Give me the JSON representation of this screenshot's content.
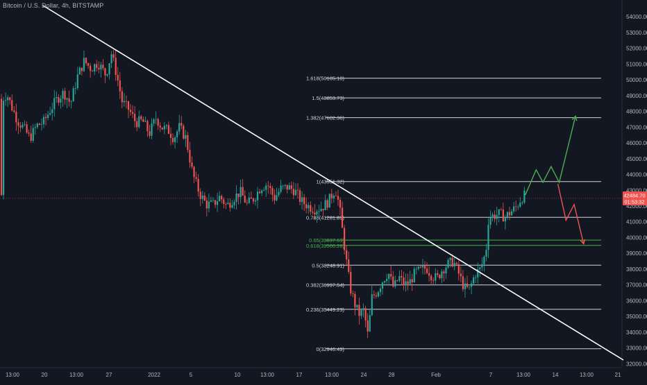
{
  "header": {
    "title": "Bitcoin / U.S. Dollar, 4h, BITSTAMP"
  },
  "colors": {
    "background": "#131722",
    "bull": "#26a69a",
    "bear": "#ef5350",
    "fib_line": "#d1d4dc",
    "fib_green": "#4caf50",
    "trendline": "#ffffff",
    "projection_up": "#4caf50",
    "projection_down": "#ef5350",
    "price_line": "#ef5350",
    "axis_text": "#b2b5be"
  },
  "price_tag": {
    "price": "42484.70",
    "countdown": "01:53:32"
  },
  "chart_data": {
    "type": "candlestick",
    "x_ticks": [
      "13:00",
      "20",
      "13:00",
      "27",
      "2022",
      "5",
      "10",
      "13:00",
      "17",
      "13:00",
      "24",
      "28",
      "Feb",
      "7",
      "13:00",
      "14",
      "13:00",
      "21"
    ],
    "y_ticks": [
      32000,
      33000,
      34000,
      35000,
      36000,
      37000,
      38000,
      39000,
      40000,
      41000,
      42000,
      43000,
      44000,
      45000,
      46000,
      47000,
      48000,
      49000,
      50000,
      51000,
      52000,
      53000,
      54000
    ],
    "ylim": [
      31750,
      54800
    ],
    "current_price": 42484.7,
    "fib_levels": [
      {
        "ratio": "0",
        "price": 32946.49,
        "label": "0(32946.49)",
        "color": "white"
      },
      {
        "ratio": "0.236",
        "price": 35449.23,
        "label": "0.236(35449.23)",
        "color": "white"
      },
      {
        "ratio": "0.382",
        "price": 36997.54,
        "label": "0.382(36997.54)",
        "color": "white"
      },
      {
        "ratio": "0.5",
        "price": 38248.91,
        "label": "0.5(38248.91)",
        "color": "white"
      },
      {
        "ratio": "0.618",
        "price": 39500.28,
        "label": "0.618(39500.28)",
        "color": "green"
      },
      {
        "ratio": "0.65",
        "price": 39837.63,
        "label": "0.65(39837.63)",
        "color": "green"
      },
      {
        "ratio": "0.786",
        "price": 41281.89,
        "label": "0.786(41281.89)",
        "color": "white"
      },
      {
        "ratio": "1",
        "price": 43551.32,
        "label": "1(43551.32)",
        "color": "white"
      },
      {
        "ratio": "1.382",
        "price": 47602.36,
        "label": "1.382(47602.36)",
        "color": "white"
      },
      {
        "ratio": "1.5",
        "price": 48853.73,
        "label": "1.5(48853.73)",
        "color": "white"
      },
      {
        "ratio": "1.618",
        "price": 50105.1,
        "label": "1.618(50105.10)",
        "color": "white"
      }
    ],
    "price_path": [
      [
        0,
        48800
      ],
      [
        0.3,
        49100
      ],
      [
        0.7,
        48200
      ],
      [
        1.1,
        47400
      ],
      [
        1.5,
        47000
      ],
      [
        2.0,
        46300
      ],
      [
        2.5,
        47100
      ],
      [
        3.0,
        47300
      ],
      [
        3.5,
        48100
      ],
      [
        4.0,
        48800
      ],
      [
        4.5,
        49200
      ],
      [
        5.0,
        48500
      ],
      [
        5.5,
        50200
      ],
      [
        6.0,
        51200
      ],
      [
        6.5,
        50700
      ],
      [
        7.0,
        51100
      ],
      [
        7.6,
        50300
      ],
      [
        8.0,
        51700
      ],
      [
        8.4,
        50300
      ],
      [
        8.8,
        48600
      ],
      [
        9.3,
        48100
      ],
      [
        9.8,
        47300
      ],
      [
        10.3,
        47400
      ],
      [
        10.8,
        46600
      ],
      [
        11.3,
        47600
      ],
      [
        11.7,
        47000
      ],
      [
        12.2,
        46800
      ],
      [
        12.6,
        46300
      ],
      [
        13.0,
        47000
      ],
      [
        13.5,
        46300
      ],
      [
        14.0,
        44000
      ],
      [
        14.5,
        42800
      ],
      [
        15.0,
        42100
      ],
      [
        15.5,
        42100
      ],
      [
        16.0,
        42600
      ],
      [
        16.5,
        42000
      ],
      [
        17.0,
        42500
      ],
      [
        17.5,
        42900
      ],
      [
        18.0,
        42100
      ],
      [
        18.5,
        42500
      ],
      [
        19.0,
        43200
      ],
      [
        19.5,
        43400
      ],
      [
        20.0,
        42500
      ],
      [
        20.5,
        43100
      ],
      [
        21.0,
        43200
      ],
      [
        21.5,
        43000
      ],
      [
        22.0,
        42300
      ],
      [
        22.5,
        42000
      ],
      [
        23.0,
        41800
      ],
      [
        23.5,
        41900
      ],
      [
        24.0,
        42300
      ],
      [
        24.5,
        43100
      ],
      [
        24.8,
        42000
      ],
      [
        25.0,
        40600
      ],
      [
        25.3,
        38600
      ],
      [
        25.6,
        36800
      ],
      [
        26.0,
        35600
      ],
      [
        26.3,
        35100
      ],
      [
        26.6,
        35400
      ],
      [
        26.9,
        33800
      ],
      [
        27.2,
        36200
      ],
      [
        27.6,
        36600
      ],
      [
        28.0,
        37300
      ],
      [
        28.4,
        37800
      ],
      [
        28.8,
        36800
      ],
      [
        29.2,
        37500
      ],
      [
        29.6,
        37000
      ],
      [
        30.0,
        37200
      ],
      [
        30.4,
        37800
      ],
      [
        30.8,
        37900
      ],
      [
        31.2,
        38100
      ],
      [
        31.6,
        37600
      ],
      [
        32.0,
        37400
      ],
      [
        32.4,
        38000
      ],
      [
        32.8,
        38300
      ],
      [
        33.2,
        38500
      ],
      [
        33.6,
        37700
      ],
      [
        34.0,
        36800
      ],
      [
        34.4,
        36700
      ],
      [
        34.8,
        37700
      ],
      [
        35.2,
        38000
      ],
      [
        35.6,
        39100
      ],
      [
        35.8,
        41300
      ],
      [
        36.2,
        41400
      ],
      [
        36.6,
        41500
      ],
      [
        37.0,
        41300
      ],
      [
        37.4,
        41600
      ],
      [
        37.8,
        41900
      ],
      [
        38.2,
        42500
      ],
      [
        38.5,
        42700
      ]
    ],
    "projection_up": [
      [
        38.5,
        42700
      ],
      [
        39.3,
        44300
      ],
      [
        39.8,
        43500
      ],
      [
        40.4,
        44500
      ],
      [
        41.0,
        43500
      ],
      [
        41.6,
        45600
      ],
      [
        42.2,
        47700
      ]
    ],
    "projection_down": [
      [
        40.9,
        43400
      ],
      [
        41.5,
        41100
      ],
      [
        42.1,
        42100
      ],
      [
        42.8,
        39600
      ]
    ]
  }
}
